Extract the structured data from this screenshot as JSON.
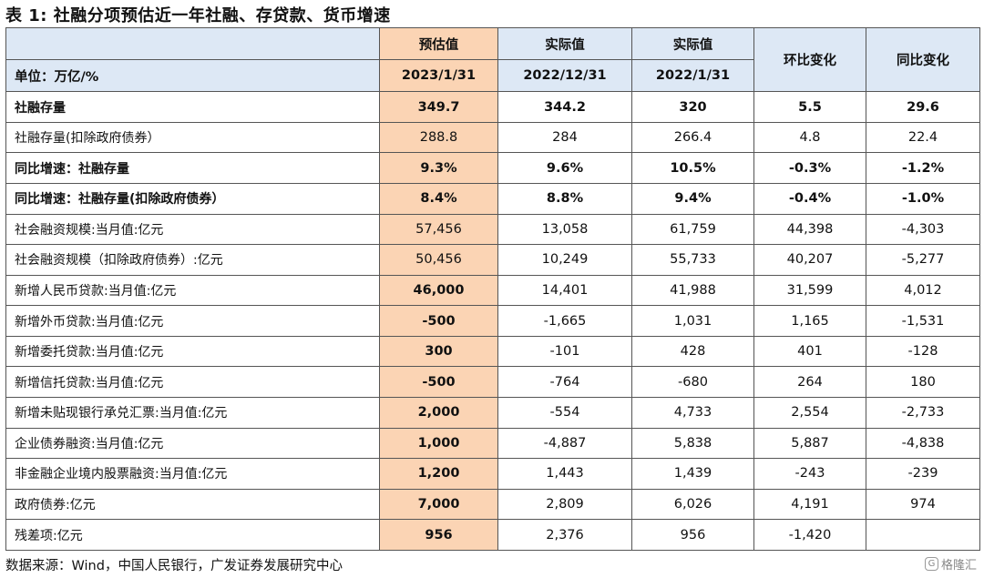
{
  "title": "表 1: 社融分项预估近一年社融、存贷款、货币增速",
  "header": {
    "row1": [
      "",
      "预估值",
      "实际值",
      "实际值"
    ],
    "row2": [
      "单位：万亿/%",
      "2023/1/31",
      "2022/12/31",
      "2022/1/31"
    ],
    "col_mom": "环比变化",
    "col_yoy": "同比变化"
  },
  "rows": [
    {
      "label": "社融存量",
      "cells": [
        "349.7",
        "344.2",
        "320",
        "5.5",
        "29.6"
      ]
    },
    {
      "label": "社融存量(扣除政府债券）",
      "cells": [
        "288.8",
        "284",
        "266.4",
        "4.8",
        "22.4"
      ]
    },
    {
      "label": "同比增速：社融存量",
      "cells": [
        "9.3%",
        "9.6%",
        "10.5%",
        "-0.3%",
        "-1.2%"
      ]
    },
    {
      "label": "同比增速：社融存量(扣除政府债券）",
      "cells": [
        "8.4%",
        "8.8%",
        "9.4%",
        "-0.4%",
        "-1.0%"
      ]
    },
    {
      "label": "社会融资规模:当月值:亿元",
      "cells": [
        "57,456",
        "13,058",
        "61,759",
        "44,398",
        "-4,303"
      ]
    },
    {
      "label": "社会融资规模（扣除政府债券）:亿元",
      "cells": [
        "50,456",
        "10,249",
        "55,733",
        "40,207",
        "-5,277"
      ]
    },
    {
      "label": "新增人民币贷款:当月值:亿元",
      "cells": [
        "46,000",
        "14,401",
        "41,988",
        "31,599",
        "4,012"
      ]
    },
    {
      "label": "新增外币贷款:当月值:亿元",
      "cells": [
        "-500",
        "-1,665",
        "1,031",
        "1,165",
        "-1,531"
      ]
    },
    {
      "label": "新增委托贷款:当月值:亿元",
      "cells": [
        "300",
        "-101",
        "428",
        "401",
        "-128"
      ]
    },
    {
      "label": "新增信托贷款:当月值:亿元",
      "cells": [
        "-500",
        "-764",
        "-680",
        "264",
        "180"
      ]
    },
    {
      "label": "新增未贴现银行承兑汇票:当月值:亿元",
      "cells": [
        "2,000",
        "-554",
        "4,733",
        "2,554",
        "-2,733"
      ]
    },
    {
      "label": "企业债券融资:当月值:亿元",
      "cells": [
        "1,000",
        "-4,887",
        "5,838",
        "5,887",
        "-4,838"
      ]
    },
    {
      "label": "非金融企业境内股票融资:当月值:亿元",
      "cells": [
        "1,200",
        "1,443",
        "1,439",
        "-243",
        "-239"
      ]
    },
    {
      "label": "政府债券:亿元",
      "cells": [
        "7,000",
        "2,809",
        "6,026",
        "4,191",
        "974"
      ]
    },
    {
      "label": "残差项:亿元",
      "cells": [
        "956",
        "2,376",
        "956",
        "-1,420",
        ""
      ]
    }
  ],
  "source": "数据来源：Wind，中国人民银行，广发证券发展研究中心",
  "watermark": {
    "icon": "gelonghui-logo-icon",
    "text": "格隆汇"
  },
  "colors": {
    "header_bg": "#dde8f5",
    "highlight_bg": "#fbd4b4",
    "border": "#555555"
  }
}
